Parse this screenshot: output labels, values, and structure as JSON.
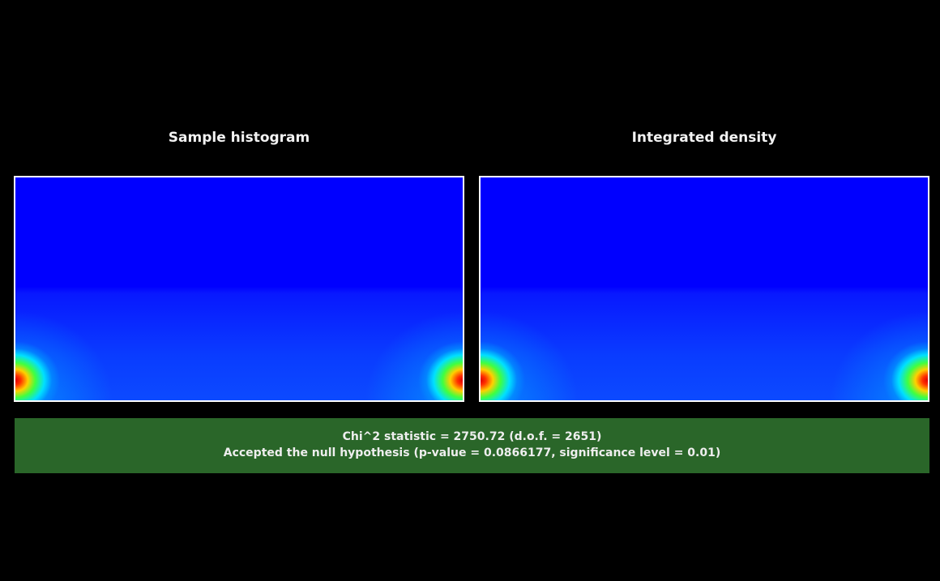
{
  "panels": [
    {
      "title": "Sample histogram"
    },
    {
      "title": "Integrated density"
    }
  ],
  "result": {
    "lines": [
      "Chi^2 statistic = 2750.72 (d.o.f. = 2651)",
      "Accepted the null hypothesis (p-value = 0.0866177, significance level = 0.01)"
    ]
  }
}
